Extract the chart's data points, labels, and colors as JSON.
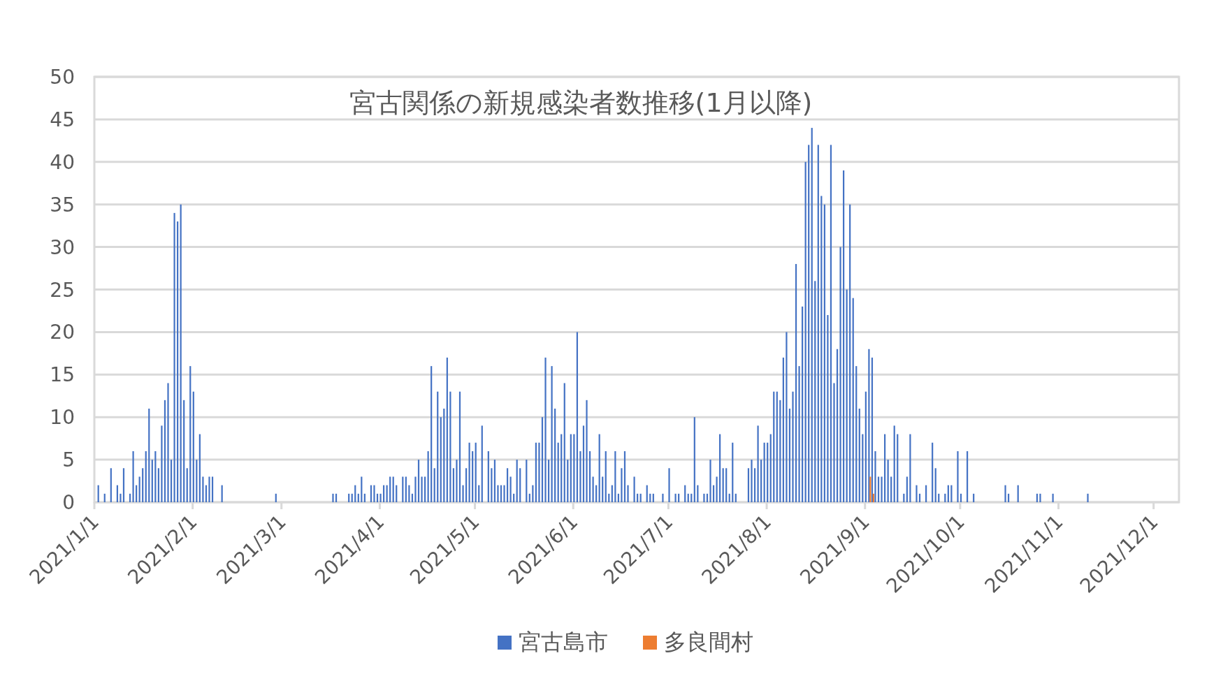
{
  "chart_data": {
    "type": "bar",
    "title": "宮古関係の新規感染者数推移(1月以降)",
    "xlim": [
      "2021-01-01",
      "2021-12-09"
    ],
    "xticks": [
      {
        "value": "2021-01-01",
        "label": "2021/1/1"
      },
      {
        "value": "2021-02-01",
        "label": "2021/2/1"
      },
      {
        "value": "2021-03-01",
        "label": "2021/3/1"
      },
      {
        "value": "2021-04-01",
        "label": "2021/4/1"
      },
      {
        "value": "2021-05-01",
        "label": "2021/5/1"
      },
      {
        "value": "2021-06-01",
        "label": "2021/6/1"
      },
      {
        "value": "2021-07-01",
        "label": "2021/7/1"
      },
      {
        "value": "2021-08-01",
        "label": "2021/8/1"
      },
      {
        "value": "2021-09-01",
        "label": "2021/9/1"
      },
      {
        "value": "2021-10-01",
        "label": "2021/10/1"
      },
      {
        "value": "2021-11-01",
        "label": "2021/11/1"
      },
      {
        "value": "2021-12-01",
        "label": "2021/12/1"
      }
    ],
    "ylim": [
      0,
      50
    ],
    "yticks": [
      0,
      5,
      10,
      15,
      20,
      25,
      30,
      35,
      40,
      45,
      50
    ],
    "grid": "y",
    "legend": "bottom",
    "series": [
      {
        "name": "宮古島市",
        "color": "#4472c4",
        "x": [
          "2021-01-02",
          "2021-01-04",
          "2021-01-06",
          "2021-01-08",
          "2021-01-09",
          "2021-01-10",
          "2021-01-12",
          "2021-01-13",
          "2021-01-14",
          "2021-01-15",
          "2021-01-16",
          "2021-01-17",
          "2021-01-18",
          "2021-01-19",
          "2021-01-20",
          "2021-01-21",
          "2021-01-22",
          "2021-01-23",
          "2021-01-24",
          "2021-01-25",
          "2021-01-26",
          "2021-01-27",
          "2021-01-28",
          "2021-01-29",
          "2021-01-30",
          "2021-01-31",
          "2021-02-01",
          "2021-02-02",
          "2021-02-03",
          "2021-02-04",
          "2021-02-05",
          "2021-02-06",
          "2021-02-07",
          "2021-02-10",
          "2021-02-27",
          "2021-03-17",
          "2021-03-18",
          "2021-03-22",
          "2021-03-23",
          "2021-03-24",
          "2021-03-25",
          "2021-03-26",
          "2021-03-27",
          "2021-03-29",
          "2021-03-30",
          "2021-03-31",
          "2021-04-01",
          "2021-04-02",
          "2021-04-03",
          "2021-04-04",
          "2021-04-05",
          "2021-04-06",
          "2021-04-08",
          "2021-04-09",
          "2021-04-10",
          "2021-04-11",
          "2021-04-12",
          "2021-04-13",
          "2021-04-14",
          "2021-04-15",
          "2021-04-16",
          "2021-04-17",
          "2021-04-18",
          "2021-04-19",
          "2021-04-20",
          "2021-04-21",
          "2021-04-22",
          "2021-04-23",
          "2021-04-24",
          "2021-04-25",
          "2021-04-26",
          "2021-04-27",
          "2021-04-28",
          "2021-04-29",
          "2021-04-30",
          "2021-05-01",
          "2021-05-02",
          "2021-05-03",
          "2021-05-05",
          "2021-05-06",
          "2021-05-07",
          "2021-05-08",
          "2021-05-09",
          "2021-05-10",
          "2021-05-11",
          "2021-05-12",
          "2021-05-13",
          "2021-05-14",
          "2021-05-15",
          "2021-05-17",
          "2021-05-18",
          "2021-05-19",
          "2021-05-20",
          "2021-05-21",
          "2021-05-22",
          "2021-05-23",
          "2021-05-24",
          "2021-05-25",
          "2021-05-26",
          "2021-05-27",
          "2021-05-28",
          "2021-05-29",
          "2021-05-30",
          "2021-05-31",
          "2021-06-01",
          "2021-06-02",
          "2021-06-03",
          "2021-06-04",
          "2021-06-05",
          "2021-06-06",
          "2021-06-07",
          "2021-06-08",
          "2021-06-09",
          "2021-06-10",
          "2021-06-11",
          "2021-06-12",
          "2021-06-13",
          "2021-06-14",
          "2021-06-15",
          "2021-06-16",
          "2021-06-17",
          "2021-06-18",
          "2021-06-20",
          "2021-06-21",
          "2021-06-22",
          "2021-06-24",
          "2021-06-25",
          "2021-06-26",
          "2021-06-29",
          "2021-07-01",
          "2021-07-03",
          "2021-07-04",
          "2021-07-06",
          "2021-07-07",
          "2021-07-08",
          "2021-07-09",
          "2021-07-10",
          "2021-07-12",
          "2021-07-13",
          "2021-07-14",
          "2021-07-15",
          "2021-07-16",
          "2021-07-17",
          "2021-07-18",
          "2021-07-19",
          "2021-07-20",
          "2021-07-21",
          "2021-07-22",
          "2021-07-26",
          "2021-07-27",
          "2021-07-28",
          "2021-07-29",
          "2021-07-30",
          "2021-07-31",
          "2021-08-01",
          "2021-08-02",
          "2021-08-03",
          "2021-08-04",
          "2021-08-05",
          "2021-08-06",
          "2021-08-07",
          "2021-08-08",
          "2021-08-09",
          "2021-08-10",
          "2021-08-11",
          "2021-08-12",
          "2021-08-13",
          "2021-08-14",
          "2021-08-15",
          "2021-08-16",
          "2021-08-17",
          "2021-08-18",
          "2021-08-19",
          "2021-08-20",
          "2021-08-21",
          "2021-08-22",
          "2021-08-23",
          "2021-08-24",
          "2021-08-25",
          "2021-08-26",
          "2021-08-27",
          "2021-08-28",
          "2021-08-29",
          "2021-08-30",
          "2021-08-31",
          "2021-09-01",
          "2021-09-02",
          "2021-09-03",
          "2021-09-04",
          "2021-09-05",
          "2021-09-06",
          "2021-09-07",
          "2021-09-08",
          "2021-09-09",
          "2021-09-10",
          "2021-09-11",
          "2021-09-13",
          "2021-09-14",
          "2021-09-15",
          "2021-09-17",
          "2021-09-18",
          "2021-09-20",
          "2021-09-22",
          "2021-09-23",
          "2021-09-24",
          "2021-09-26",
          "2021-09-27",
          "2021-09-28",
          "2021-09-30",
          "2021-10-01",
          "2021-10-03",
          "2021-10-05",
          "2021-10-15",
          "2021-10-16",
          "2021-10-19",
          "2021-10-25",
          "2021-10-26",
          "2021-10-30",
          "2021-11-10"
        ],
        "values": [
          2,
          1,
          4,
          2,
          1,
          4,
          1,
          6,
          2,
          3,
          4,
          6,
          11,
          5,
          6,
          4,
          9,
          12,
          14,
          5,
          34,
          33,
          35,
          12,
          4,
          16,
          13,
          5,
          8,
          3,
          2,
          3,
          3,
          2,
          1,
          1,
          1,
          1,
          1,
          2,
          1,
          3,
          1,
          2,
          2,
          1,
          1,
          2,
          2,
          3,
          3,
          2,
          3,
          3,
          2,
          1,
          3,
          5,
          3,
          3,
          6,
          16,
          4,
          13,
          10,
          11,
          17,
          13,
          4,
          5,
          13,
          2,
          4,
          7,
          6,
          7,
          2,
          9,
          6,
          4,
          5,
          2,
          2,
          2,
          4,
          3,
          1,
          5,
          4,
          5,
          1,
          2,
          7,
          7,
          10,
          17,
          5,
          16,
          11,
          7,
          8,
          14,
          5,
          8,
          8,
          20,
          6,
          9,
          12,
          6,
          3,
          2,
          8,
          3,
          6,
          1,
          2,
          6,
          1,
          4,
          6,
          2,
          3,
          1,
          1,
          2,
          1,
          1,
          1,
          4,
          1,
          1,
          2,
          1,
          1,
          10,
          2,
          1,
          1,
          5,
          2,
          3,
          8,
          4,
          4,
          1,
          7,
          1,
          4,
          5,
          4,
          9,
          5,
          7,
          7,
          8,
          13,
          13,
          12,
          17,
          20,
          11,
          13,
          28,
          16,
          23,
          40,
          42,
          44,
          26,
          42,
          36,
          35,
          22,
          42,
          14,
          18,
          30,
          39,
          25,
          35,
          24,
          16,
          11,
          8,
          13,
          18,
          17,
          6,
          3,
          3,
          8,
          5,
          3,
          9,
          8,
          1,
          3,
          8,
          2,
          1,
          2,
          7,
          4,
          1,
          1,
          2,
          2,
          6,
          1,
          6,
          1,
          2,
          1,
          2,
          1,
          1,
          1,
          1
        ]
      },
      {
        "name": "多良間村",
        "color": "#ed7d31",
        "x": [
          "2021-09-02",
          "2021-09-03"
        ],
        "values": [
          3,
          1
        ]
      }
    ]
  }
}
